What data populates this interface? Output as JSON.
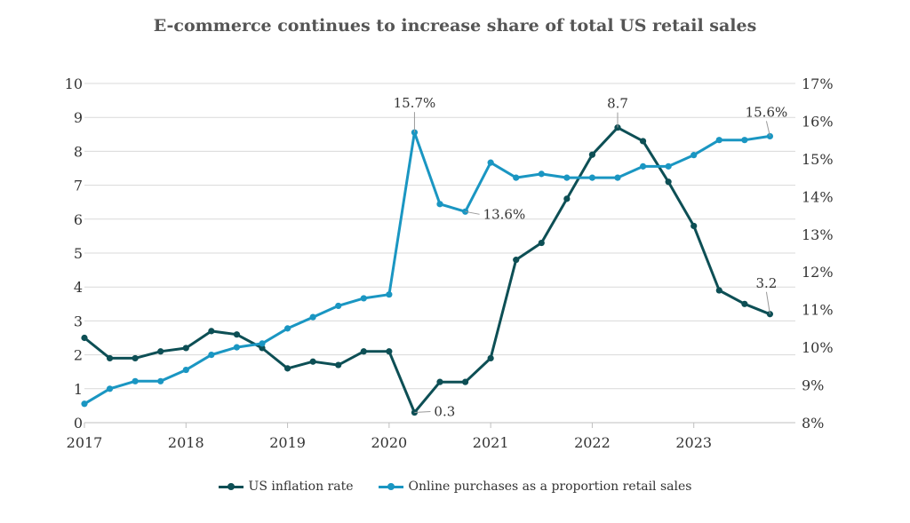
{
  "chart_data": {
    "type": "line",
    "title": "E-commerce continues to increase share of total US retail sales",
    "x_ticks": [
      "2017",
      "2018",
      "2019",
      "2020",
      "2021",
      "2022",
      "2023"
    ],
    "y_left": {
      "ticks": [
        "0",
        "1",
        "2",
        "3",
        "4",
        "5",
        "6",
        "7",
        "8",
        "9",
        "10"
      ],
      "ylim": [
        0,
        10
      ]
    },
    "y_right": {
      "ticks": [
        "8%",
        "9%",
        "10%",
        "11%",
        "12%",
        "13%",
        "14%",
        "15%",
        "16%",
        "17%"
      ],
      "ylim": [
        8,
        17
      ]
    },
    "x": [
      2017,
      2017.25,
      2017.5,
      2017.75,
      2018,
      2018.25,
      2018.5,
      2018.75,
      2019,
      2019.25,
      2019.5,
      2019.75,
      2020,
      2020.25,
      2020.5,
      2020.75,
      2021,
      2021.25,
      2021.5,
      2021.75,
      2022,
      2022.25,
      2022.5,
      2022.75,
      2023,
      2023.25,
      2023.5,
      2023.75
    ],
    "series": [
      {
        "name": "US inflation rate",
        "axis": "left",
        "color": "#0d4f55",
        "values": [
          2.5,
          1.9,
          1.9,
          2.1,
          2.2,
          2.7,
          2.6,
          2.2,
          1.6,
          1.8,
          1.7,
          2.1,
          2.1,
          0.3,
          1.2,
          1.2,
          1.9,
          4.8,
          5.3,
          6.6,
          7.9,
          8.7,
          8.3,
          7.1,
          5.8,
          3.9,
          3.5,
          3.2
        ],
        "annotations": [
          {
            "index": 13,
            "label": "0.3"
          },
          {
            "index": 21,
            "label": "8.7"
          },
          {
            "index": 27,
            "label": "3.2"
          }
        ]
      },
      {
        "name": "Online purchases as a proportion retail sales",
        "axis": "right",
        "color": "#1a96c2",
        "values": [
          8.5,
          8.9,
          9.1,
          9.1,
          9.4,
          9.8,
          10.0,
          10.1,
          10.5,
          10.8,
          11.1,
          11.3,
          11.4,
          15.7,
          13.8,
          13.6,
          14.9,
          14.5,
          14.6,
          14.5,
          14.5,
          14.5,
          14.8,
          14.8,
          15.1,
          15.5,
          15.5,
          15.6
        ],
        "annotations": [
          {
            "index": 13,
            "label": "15.7%"
          },
          {
            "index": 15,
            "label": "13.6%"
          },
          {
            "index": 27,
            "label": "15.6%"
          }
        ]
      }
    ],
    "grid": true,
    "legend": "bottom-center"
  }
}
